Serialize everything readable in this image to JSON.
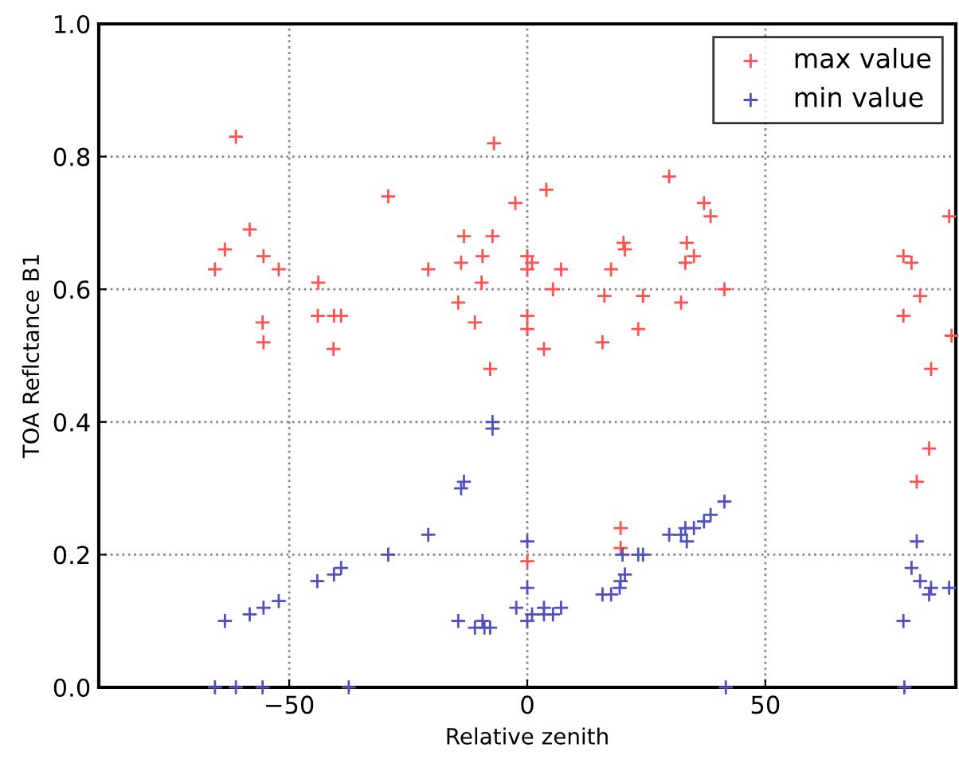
{
  "chart_data": {
    "type": "scatter",
    "xlabel": "Relative zenith",
    "ylabel": "TOA Reflctance B1",
    "xlim": [
      -90,
      90
    ],
    "ylim": [
      0,
      1
    ],
    "xticks": [
      {
        "value": -50,
        "label": "−50"
      },
      0,
      50
    ],
    "yticks": [
      {
        "value": 0,
        "label": "0.0"
      },
      {
        "value": 0.2,
        "label": "0.2"
      },
      {
        "value": 0.4,
        "label": "0.4"
      },
      {
        "value": 0.6,
        "label": "0.6"
      },
      {
        "value": 0.8,
        "label": "0.8"
      },
      {
        "value": 1,
        "label": "1.0"
      }
    ],
    "grid": true,
    "legend": "top right",
    "marker": "cross",
    "series": [
      {
        "name": "max value",
        "color": "#ff5050",
        "x": [
          -65.6,
          -63.5,
          -61.2,
          -58.3,
          -55.4,
          -55.6,
          -55.4,
          -52.2,
          -43.9,
          -44.0,
          -40.6,
          -39.1,
          -40.7,
          -29.2,
          -20.8,
          -14.5,
          -13.9,
          -13.3,
          -11.0,
          -9.4,
          -9.6,
          -7.8,
          -7.3,
          -7.0,
          -2.5,
          4.0,
          29.8,
          0,
          1.0,
          0,
          0,
          0,
          5.4,
          3.5,
          7.1,
          16.2,
          15.8,
          20.2,
          20.5,
          17.6,
          24.3,
          23.3,
          32.3,
          33.5,
          33.2,
          35.0,
          37.1,
          38.5,
          41.4,
          79.0,
          80.7,
          82.5,
          79.0,
          84.8,
          88.6,
          89.1,
          0,
          19.6,
          19.6,
          81.8,
          84.4
        ],
        "values": [
          0.63,
          0.66,
          0.83,
          0.69,
          0.65,
          0.55,
          0.52,
          0.63,
          0.61,
          0.56,
          0.56,
          0.56,
          0.51,
          0.74,
          0.63,
          0.58,
          0.64,
          0.68,
          0.55,
          0.65,
          0.61,
          0.48,
          0.68,
          0.82,
          0.73,
          0.75,
          0.77,
          0.65,
          0.64,
          0.63,
          0.56,
          0.54,
          0.6,
          0.51,
          0.63,
          0.59,
          0.52,
          0.67,
          0.66,
          0.63,
          0.59,
          0.54,
          0.58,
          0.67,
          0.64,
          0.65,
          0.73,
          0.71,
          0.6,
          0.65,
          0.64,
          0.59,
          0.56,
          0.48,
          0.71,
          0.53,
          0.19,
          0.24,
          0.21,
          0.31,
          0.36
        ]
      },
      {
        "name": "min value",
        "color": "#5050c0",
        "x": [
          -63.5,
          -58.3,
          -55.4,
          -52.2,
          -44.1,
          -40.6,
          -39.1,
          -29.2,
          -20.8,
          -14.5,
          -13.9,
          -13.3,
          -11.0,
          -9.4,
          -9.0,
          -7.8,
          -7.3,
          -7.3,
          -2.3,
          0,
          0,
          0,
          1.0,
          3.5,
          3.5,
          5.4,
          7.1,
          15.8,
          17.6,
          19.4,
          19.6,
          20.5,
          20.0,
          23.3,
          24.3,
          29.8,
          32.3,
          33.2,
          33.5,
          35.0,
          37.1,
          38.5,
          41.4,
          79.0,
          80.7,
          81.8,
          82.5,
          84.4,
          84.8,
          88.6,
          -65.6,
          -61.2,
          -55.6,
          -37.5,
          41.7,
          79.2
        ],
        "values": [
          0.1,
          0.11,
          0.12,
          0.13,
          0.16,
          0.17,
          0.18,
          0.2,
          0.23,
          0.1,
          0.3,
          0.31,
          0.09,
          0.1,
          0.09,
          0.09,
          0.4,
          0.39,
          0.12,
          0.22,
          0.15,
          0.1,
          0.11,
          0.12,
          0.11,
          0.11,
          0.12,
          0.14,
          0.14,
          0.15,
          0.16,
          0.17,
          0.2,
          0.2,
          0.2,
          0.23,
          0.23,
          0.24,
          0.22,
          0.24,
          0.25,
          0.26,
          0.28,
          0.1,
          0.18,
          0.22,
          0.16,
          0.14,
          0.15,
          0.15,
          0,
          0,
          0,
          0,
          0,
          0
        ]
      }
    ]
  }
}
